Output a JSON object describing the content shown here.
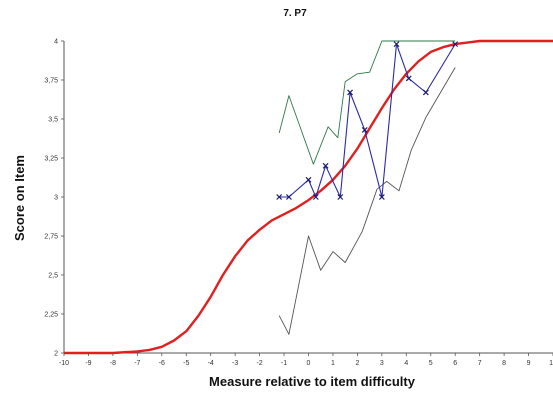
{
  "chart_data": {
    "type": "line",
    "title": "7. P7",
    "xlabel": "Measure relative to item difficulty",
    "ylabel": "Score on Item",
    "xlim": [
      -10,
      10
    ],
    "ylim": [
      2,
      4
    ],
    "x_ticks": [
      -10,
      -9,
      -8,
      -7,
      -6,
      -5,
      -4,
      -3,
      -2,
      -1,
      0,
      1,
      2,
      3,
      4,
      5,
      6,
      7,
      8,
      9,
      10
    ],
    "y_ticks": [
      2,
      2.25,
      2.5,
      2.75,
      3,
      3.25,
      3.5,
      3.75,
      4
    ],
    "y_tick_labels": [
      "2",
      "2,25",
      "2,5",
      "2,75",
      "3",
      "3,25",
      "3,5",
      "3,75",
      "4"
    ],
    "grid": false,
    "series": [
      {
        "role": "model-curve",
        "color": "#e02020",
        "x": [
          -10,
          -9,
          -8,
          -7,
          -6.5,
          -6,
          -5.5,
          -5,
          -4.5,
          -4,
          -3.5,
          -3,
          -2.5,
          -2,
          -1.5,
          -1,
          -0.5,
          0,
          0.5,
          1,
          1.5,
          2,
          2.5,
          3,
          3.5,
          4,
          4.5,
          5,
          5.5,
          6,
          6.5,
          7,
          8,
          9,
          10
        ],
        "values": [
          2.0,
          2.0,
          2.0,
          2.01,
          2.02,
          2.04,
          2.08,
          2.14,
          2.24,
          2.36,
          2.5,
          2.62,
          2.72,
          2.79,
          2.85,
          2.89,
          2.93,
          2.98,
          3.04,
          3.11,
          3.2,
          3.31,
          3.44,
          3.57,
          3.69,
          3.79,
          3.87,
          3.93,
          3.96,
          3.98,
          3.99,
          4.0,
          4.0,
          4.0,
          4.0
        ]
      },
      {
        "role": "observed",
        "color": "#2a2aa8",
        "x": [
          -1.2,
          -0.8,
          0,
          0.3,
          0.7,
          1.3,
          1.7,
          2.3,
          3.0,
          3.6,
          4.1,
          4.8,
          6.0
        ],
        "values": [
          3.0,
          3.0,
          3.11,
          3.0,
          3.2,
          3.0,
          3.67,
          3.43,
          3.0,
          3.98,
          3.76,
          3.67,
          3.98
        ]
      },
      {
        "role": "upper-band",
        "color": "#2f7a4a",
        "x": [
          -1.2,
          -0.8,
          0.2,
          0.8,
          1.2,
          1.5,
          2.0,
          2.5,
          3.0,
          3.5,
          4.5,
          6.0
        ],
        "values": [
          3.41,
          3.65,
          3.21,
          3.45,
          3.38,
          3.74,
          3.79,
          3.8,
          4.0,
          4.0,
          4.0,
          4.0
        ]
      },
      {
        "role": "lower-band",
        "color": "#555555",
        "x": [
          -1.2,
          -0.8,
          0.0,
          0.5,
          1.0,
          1.5,
          2.2,
          2.8,
          3.2,
          3.7,
          4.2,
          4.8,
          6.0
        ],
        "values": [
          2.24,
          2.12,
          2.75,
          2.53,
          2.65,
          2.58,
          2.78,
          3.05,
          3.1,
          3.04,
          3.3,
          3.51,
          3.83
        ]
      }
    ]
  }
}
